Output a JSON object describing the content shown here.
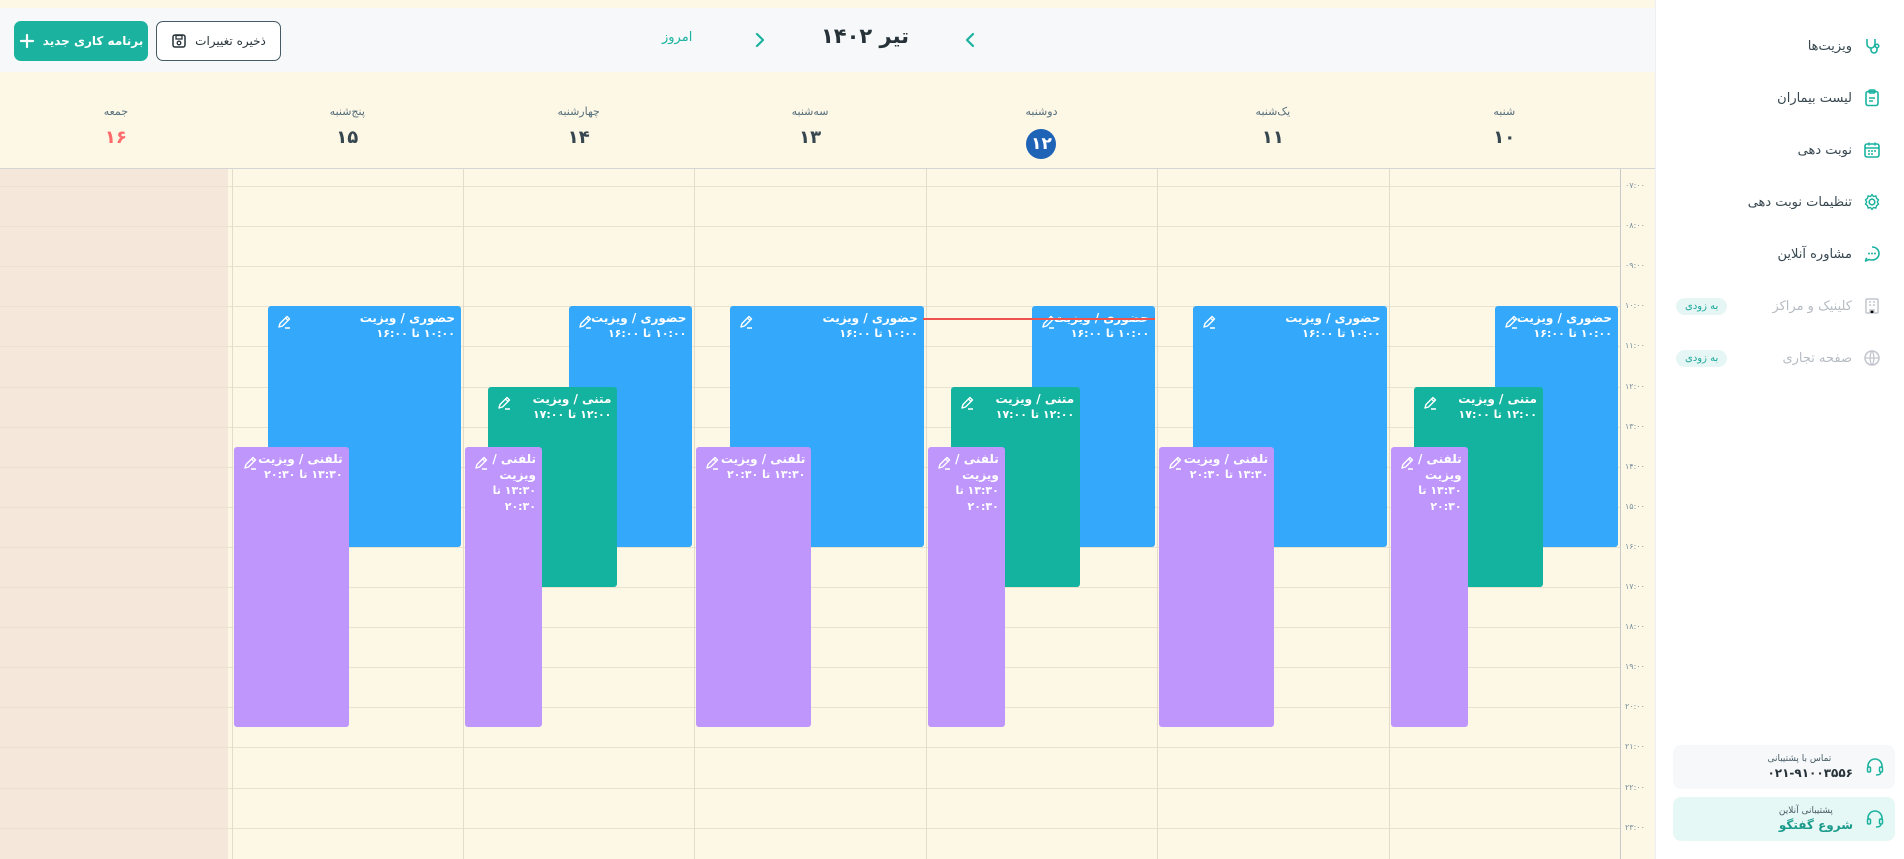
{
  "sidebar": {
    "items": [
      {
        "label": "ویزیت‌ها",
        "icon": "stethoscope-icon"
      },
      {
        "label": "لیست بیماران",
        "icon": "clipboard-icon"
      },
      {
        "label": "نوبت دهی",
        "icon": "calendar-icon"
      },
      {
        "label": "تنظیمات نوبت دهی",
        "icon": "gear-icon"
      },
      {
        "label": "مشاوره آنلاین",
        "icon": "chat-icon"
      },
      {
        "label": "کلینیک و مراکز",
        "icon": "building-icon",
        "badge": "به زودی"
      },
      {
        "label": "صفحه تجاری",
        "icon": "globe-icon",
        "badge": "به زودی"
      }
    ],
    "support_phone": {
      "caption": "تماس با پشتیبانی",
      "value": "۰۲۱-۹۱۰۰۳۵۵۶"
    },
    "support_chat": {
      "caption": "پشتیبانی آنلاین",
      "value": "شروع گفتگو"
    }
  },
  "toolbar": {
    "new_schedule_label": "برنامه کاری جدید",
    "save_label": "ذخیره تغییرات",
    "today_label": "امروز",
    "month_title": "تیر ۱۴۰۲"
  },
  "days": [
    {
      "name": "شنبه",
      "num": "۱۰"
    },
    {
      "name": "یک‌شنبه",
      "num": "۱۱"
    },
    {
      "name": "دوشنبه",
      "num": "۱۲",
      "today": true
    },
    {
      "name": "سه‌شنبه",
      "num": "۱۳"
    },
    {
      "name": "چهارشنبه",
      "num": "۱۴"
    },
    {
      "name": "پنج‌شنبه",
      "num": "۱۵"
    },
    {
      "name": "جمعه",
      "num": "۱۶",
      "holiday": true
    }
  ],
  "time_labels": [
    "۰۷:۰۰",
    "۰۸:۰۰",
    "۰۹:۰۰",
    "۱۰:۰۰",
    "۱۱:۰۰",
    "۱۲:۰۰",
    "۱۳:۰۰",
    "۱۴:۰۰",
    "۱۵:۰۰",
    "۱۶:۰۰",
    "۱۷:۰۰",
    "۱۸:۰۰",
    "۱۹:۰۰",
    "۲۰:۰۰",
    "۲۱:۰۰",
    "۲۲:۰۰",
    "۲۳:۰۰"
  ],
  "event_types": {
    "in_person": {
      "title": "حضوری / ویزیت",
      "time": "۱۰:۰۰ تا ۱۶:۰۰",
      "color": "#34a9fb"
    },
    "text": {
      "title": "متنی / ویزیت",
      "time": "۱۲:۰۰ تا ۱۷:۰۰",
      "color": "#14b3a0"
    },
    "phone": {
      "title": "تلفنی / ویزیت",
      "time": "۱۳:۳۰ تا ۲۰:۳۰",
      "color": "#bf96fc"
    }
  },
  "events": [
    {
      "day": 0,
      "type": "in_person"
    },
    {
      "day": 0,
      "type": "text"
    },
    {
      "day": 0,
      "type": "phone"
    },
    {
      "day": 1,
      "type": "in_person"
    },
    {
      "day": 1,
      "type": "phone"
    },
    {
      "day": 2,
      "type": "in_person"
    },
    {
      "day": 2,
      "type": "text"
    },
    {
      "day": 2,
      "type": "phone"
    },
    {
      "day": 3,
      "type": "in_person"
    },
    {
      "day": 3,
      "type": "phone"
    },
    {
      "day": 4,
      "type": "in_person"
    },
    {
      "day": 4,
      "type": "text"
    },
    {
      "day": 4,
      "type": "phone"
    },
    {
      "day": 5,
      "type": "in_person"
    },
    {
      "day": 5,
      "type": "phone"
    }
  ]
}
